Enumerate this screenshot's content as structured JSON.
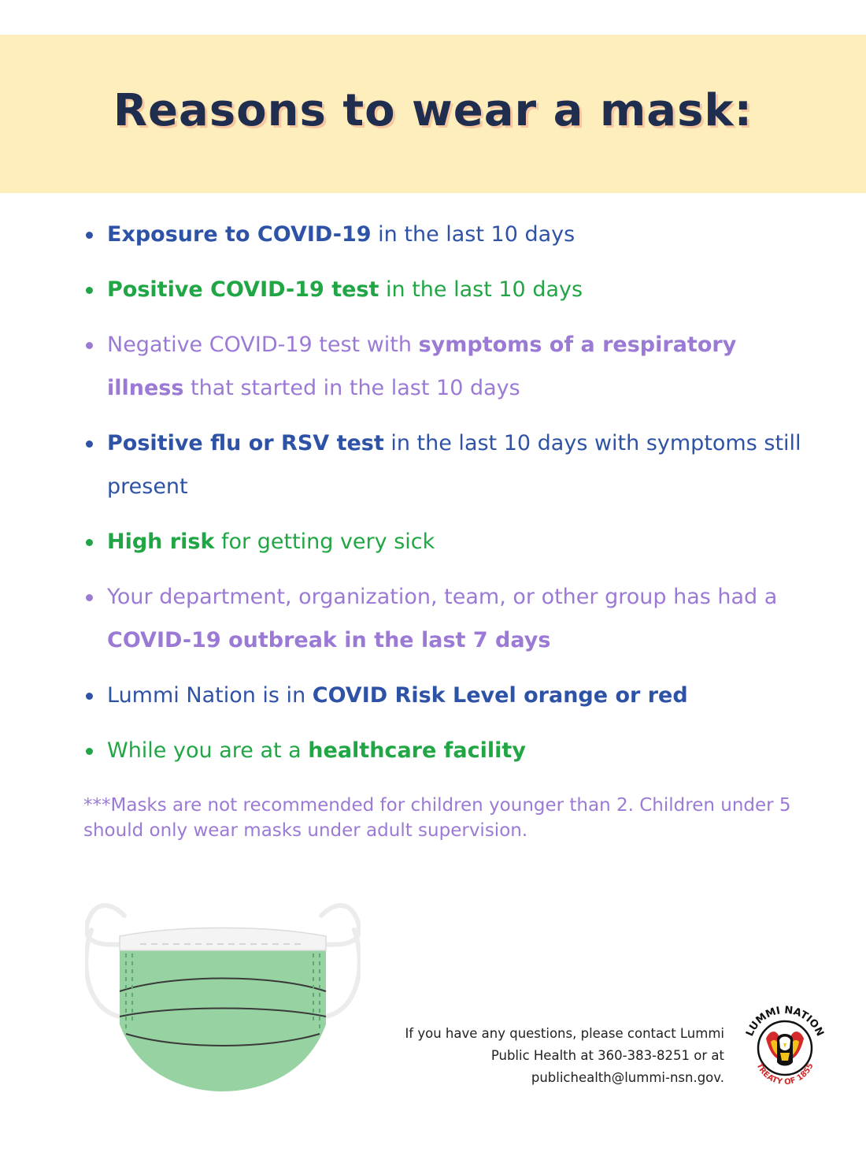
{
  "title": "Reasons to wear a mask:",
  "colors": {
    "banner": "#fdeebb",
    "title": "#1f2d4e",
    "blue": "#2e53a6",
    "green": "#21a645",
    "purple": "#9b7ad6",
    "mask_green": "#97d3a2"
  },
  "reasons": [
    {
      "color": "blue",
      "parts": [
        "Exposure to COVID-19",
        " in the last 10 days"
      ]
    },
    {
      "color": "green",
      "parts": [
        "Positive COVID-19 test",
        " in the last 10 days"
      ]
    },
    {
      "color": "purple",
      "parts": [
        "Negative COVID-19 test with ",
        "symptoms of a respiratory illness",
        " that started in the last 10 days"
      ]
    },
    {
      "color": "blue",
      "parts": [
        "Positive flu or RSV test",
        " in the last 10 days with symptoms still present"
      ]
    },
    {
      "color": "green",
      "parts": [
        "High risk",
        " for getting very sick"
      ]
    },
    {
      "color": "purple",
      "parts": [
        "Your department, organization, team, or other group has had a ",
        "COVID-19 outbreak in the last 7 days"
      ]
    },
    {
      "color": "blue",
      "parts": [
        "Lummi Nation is in ",
        "COVID Risk Level orange or red"
      ]
    },
    {
      "color": "green",
      "parts": [
        "While you are at a ",
        "healthcare facility"
      ]
    }
  ],
  "note": "***Masks are not recommended for children younger than 2. Children under 5 should only wear masks under adult supervision.",
  "contact": {
    "line1": "If you have any questions, please contact Lummi",
    "line2": "Public Health at 360-383-8251 or at",
    "line3": "publichealth@lummi-nsn.gov."
  },
  "logo": {
    "top_text": "LUMMI NATION",
    "bottom_text": "TREATY OF 1855"
  }
}
